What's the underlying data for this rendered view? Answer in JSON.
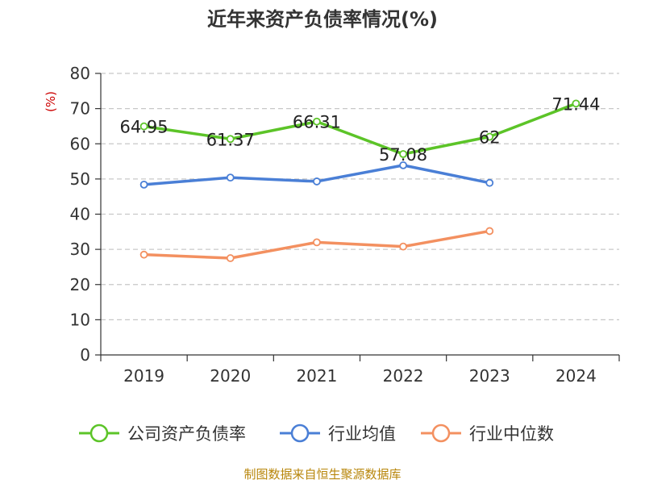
{
  "chart_data": {
    "type": "line",
    "title": "近年来资产负债率情况(%)",
    "ylabel": "(%)",
    "xlabel": "",
    "categories": [
      "2019",
      "2020",
      "2021",
      "2022",
      "2023",
      "2024"
    ],
    "ylim": [
      0,
      80
    ],
    "yticks": [
      0,
      10,
      20,
      30,
      40,
      50,
      60,
      70,
      80
    ],
    "grid": true,
    "legend_position": "bottom",
    "series": [
      {
        "name": "公司资产负债率",
        "color": "#5cc428",
        "values": [
          64.95,
          61.37,
          66.31,
          57.08,
          62,
          71.44
        ],
        "labels": [
          "64.95",
          "61.37",
          "66.31",
          "57.08",
          "62",
          "71.44"
        ]
      },
      {
        "name": "行业均值",
        "color": "#4a7fd6",
        "values": [
          48.4,
          50.4,
          49.3,
          53.9,
          48.9,
          null
        ]
      },
      {
        "name": "行业中位数",
        "color": "#f39060",
        "values": [
          28.5,
          27.5,
          32.0,
          30.8,
          35.2,
          null
        ]
      }
    ]
  },
  "footer": {
    "source": "制图数据来自恒生聚源数据库"
  }
}
